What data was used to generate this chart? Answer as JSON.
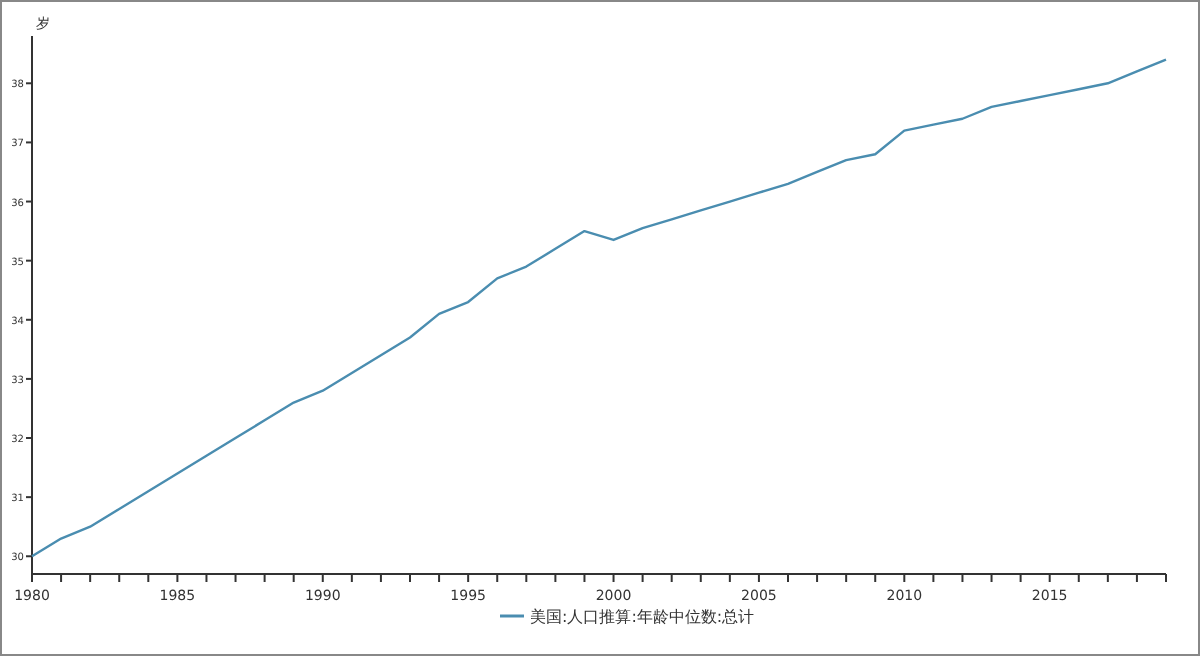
{
  "chart_data": {
    "type": "line",
    "ylabel": "岁",
    "x": [
      1980,
      1981,
      1982,
      1983,
      1984,
      1985,
      1986,
      1987,
      1988,
      1989,
      1990,
      1991,
      1992,
      1993,
      1994,
      1995,
      1996,
      1997,
      1998,
      1999,
      2000,
      2001,
      2002,
      2003,
      2004,
      2005,
      2006,
      2007,
      2008,
      2009,
      2010,
      2011,
      2012,
      2013,
      2014,
      2015,
      2016,
      2017,
      2018,
      2019
    ],
    "series": [
      {
        "name": "美国:人口推算:年龄中位数:总计",
        "color": "#4a8db0",
        "values": [
          30.0,
          30.3,
          30.5,
          30.8,
          31.1,
          31.4,
          31.7,
          32.0,
          32.3,
          32.6,
          32.8,
          33.1,
          33.4,
          33.7,
          34.1,
          34.3,
          34.7,
          34.9,
          35.2,
          35.5,
          35.35,
          35.55,
          35.7,
          35.85,
          36.0,
          36.15,
          36.3,
          36.5,
          36.7,
          36.8,
          37.2,
          37.3,
          37.4,
          37.6,
          37.7,
          37.8,
          37.9,
          38.0,
          38.2,
          38.4
        ]
      }
    ],
    "xlim": [
      1980,
      2019
    ],
    "ylim": [
      29.7,
      38.8
    ],
    "xticks": [
      1980,
      {
        "value": 1981,
        "label": null
      },
      {
        "value": 1982,
        "label": null
      },
      {
        "value": 1983,
        "label": null
      },
      {
        "value": 1984,
        "label": null
      },
      1985,
      {
        "value": 1986,
        "label": null
      },
      {
        "value": 1987,
        "label": null
      },
      {
        "value": 1988,
        "label": null
      },
      {
        "value": 1989,
        "label": null
      },
      1990,
      {
        "value": 1991,
        "label": null
      },
      {
        "value": 1992,
        "label": null
      },
      {
        "value": 1993,
        "label": null
      },
      {
        "value": 1994,
        "label": null
      },
      1995,
      {
        "value": 1996,
        "label": null
      },
      {
        "value": 1997,
        "label": null
      },
      {
        "value": 1998,
        "label": null
      },
      {
        "value": 1999,
        "label": null
      },
      2000,
      {
        "value": 2001,
        "label": null
      },
      {
        "value": 2002,
        "label": null
      },
      {
        "value": 2003,
        "label": null
      },
      {
        "value": 2004,
        "label": null
      },
      2005,
      {
        "value": 2006,
        "label": null
      },
      {
        "value": 2007,
        "label": null
      },
      {
        "value": 2008,
        "label": null
      },
      {
        "value": 2009,
        "label": null
      },
      2010,
      {
        "value": 2011,
        "label": null
      },
      {
        "value": 2012,
        "label": null
      },
      {
        "value": 2013,
        "label": null
      },
      {
        "value": 2014,
        "label": null
      },
      2015,
      {
        "value": 2016,
        "label": null
      },
      {
        "value": 2017,
        "label": null
      },
      {
        "value": 2018,
        "label": null
      },
      {
        "value": 2019,
        "label": null
      }
    ],
    "yticks": [
      30,
      31,
      32,
      33,
      34,
      35,
      36,
      37,
      38
    ],
    "grid": false,
    "legend": "bottom",
    "marker": "none",
    "line_style": "solid"
  }
}
